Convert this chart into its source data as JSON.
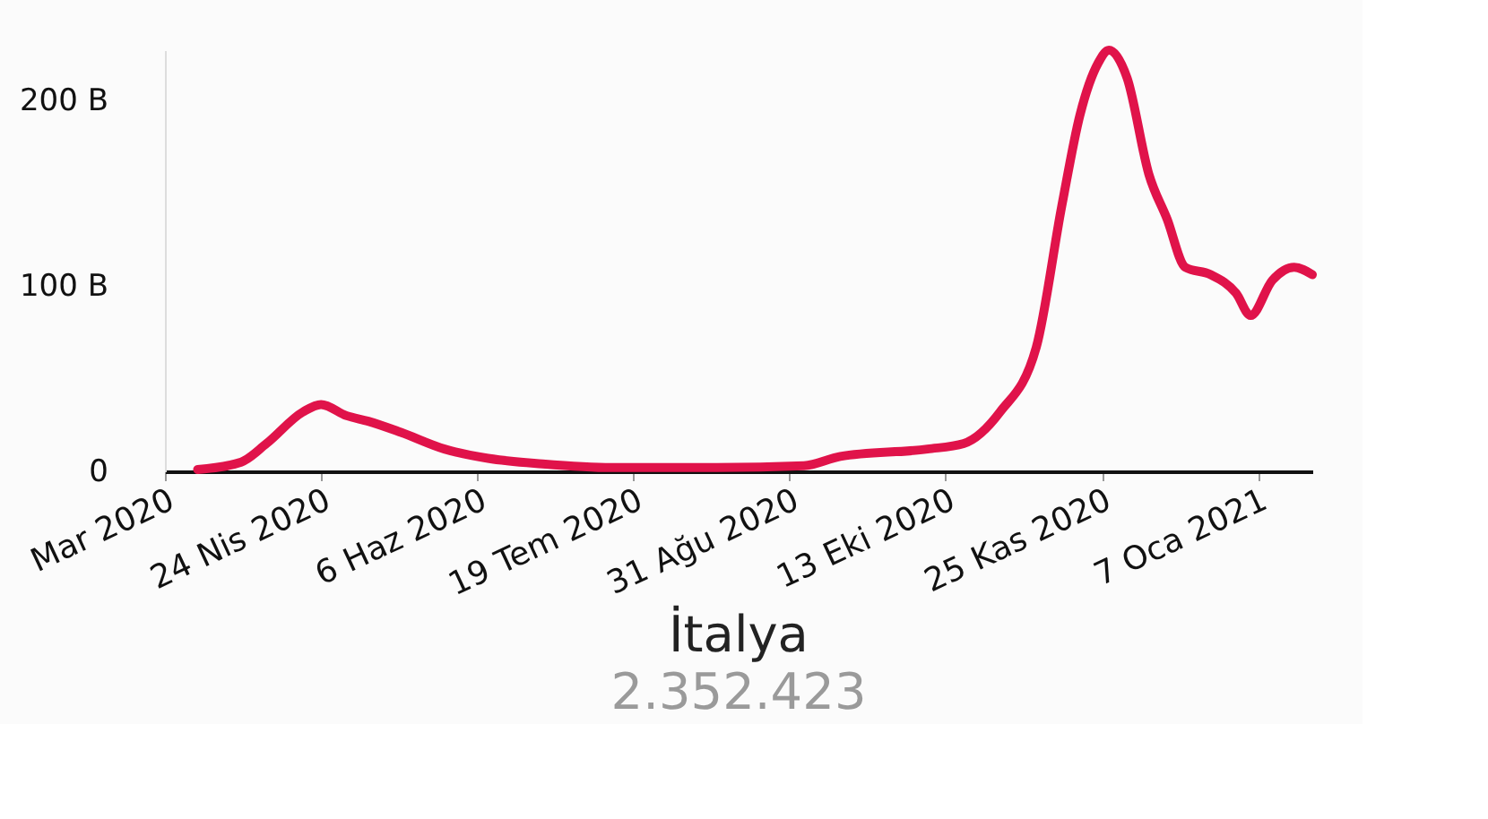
{
  "chart_data": {
    "type": "line",
    "title": "İtalya",
    "subtitle": "2.352.423",
    "x": [
      "2020-03-21",
      "2020-04-02",
      "2020-04-09",
      "2020-04-19",
      "2020-04-24",
      "2020-05-01",
      "2020-05-07",
      "2020-05-16",
      "2020-05-28",
      "2020-06-09",
      "2020-06-24",
      "2020-07-13",
      "2020-08-11",
      "2020-09-04",
      "2020-09-14",
      "2020-10-08",
      "2020-10-18",
      "2020-10-28",
      "2020-11-07",
      "2020-11-14",
      "2020-11-19",
      "2020-11-24",
      "2020-11-27",
      "2020-12-02",
      "2020-12-08",
      "2020-12-13",
      "2020-12-18",
      "2020-12-25",
      "2021-01-01",
      "2021-01-05",
      "2021-01-11",
      "2021-01-17",
      "2021-01-22"
    ],
    "series": [
      {
        "color": "#e0134a",
        "values": [
          1,
          5,
          15,
          32,
          36,
          30,
          27,
          21,
          12,
          7,
          4,
          2,
          2,
          3,
          8,
          12,
          15,
          32,
          67,
          143,
          192,
          220,
          227,
          212,
          160,
          136,
          110,
          106,
          96,
          84,
          103,
          110,
          106
        ]
      }
    ],
    "xlim": [
      "2020-03-12",
      "2021-01-22"
    ],
    "xticks": [
      {
        "value": "2020-03-12",
        "label": "Mar 2020"
      },
      {
        "value": "2020-04-24",
        "label": "24 Nis 2020"
      },
      {
        "value": "2020-06-06",
        "label": "6 Haz 2020"
      },
      {
        "value": "2020-07-19",
        "label": "19 Tem 2020"
      },
      {
        "value": "2020-08-31",
        "label": "31 Ağu 2020"
      },
      {
        "value": "2020-10-13",
        "label": "13 Eki 2020"
      },
      {
        "value": "2020-11-25",
        "label": "25 Kas 2020"
      },
      {
        "value": "2021-01-07",
        "label": "7 Oca 2021"
      }
    ],
    "ylim": [
      0,
      227
    ],
    "yticks": [
      {
        "value": 0,
        "label": "0"
      },
      {
        "value": 100,
        "label": "100 B"
      },
      {
        "value": 200,
        "label": "200 B"
      }
    ],
    "grid": false,
    "marker": "none",
    "line_style": "solid"
  }
}
